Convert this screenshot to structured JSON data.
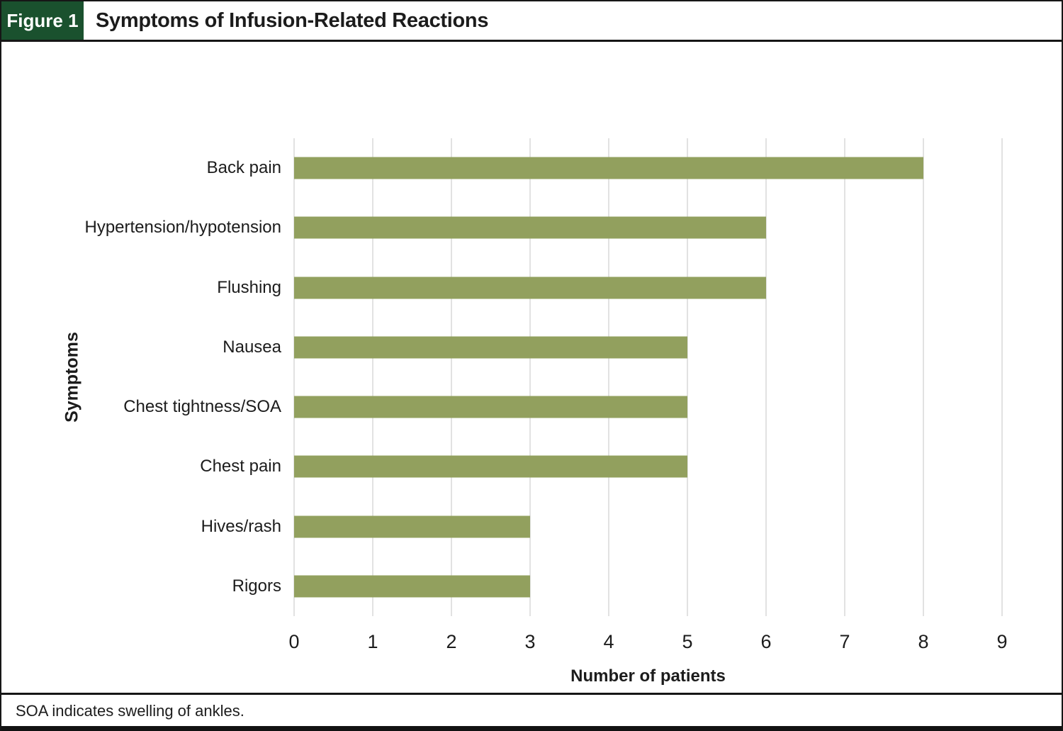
{
  "figure": {
    "label": "Figure 1",
    "title": "Symptoms of Infusion-Related Reactions"
  },
  "footnote": "SOA indicates swelling of ankles.",
  "colors": {
    "bar": "#92a05e",
    "header_green": "#1a512e",
    "gridline": "#e2e2e2",
    "border": "#161616"
  },
  "chart_data": {
    "type": "bar",
    "orientation": "horizontal",
    "title": "Symptoms of Infusion-Related Reactions",
    "categories": [
      "Back pain",
      "Hypertension/hypotension",
      "Flushing",
      "Nausea",
      "Chest tightness/SOA",
      "Chest pain",
      "Hives/rash",
      "Rigors"
    ],
    "values": [
      8,
      6,
      6,
      5,
      5,
      5,
      3,
      3
    ],
    "xlabel": "Number of patients",
    "ylabel": "Symptoms",
    "xlim": [
      0,
      9
    ],
    "xticks": [
      0,
      1,
      2,
      3,
      4,
      5,
      6,
      7,
      8,
      9
    ],
    "grid": "vertical",
    "legend": "none",
    "bar_color": "#92a05e"
  }
}
